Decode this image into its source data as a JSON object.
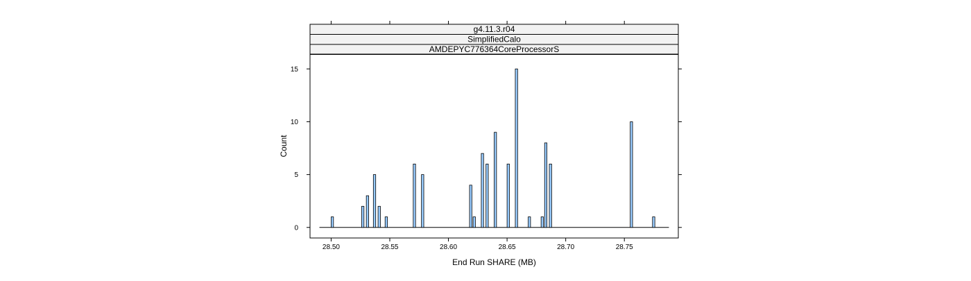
{
  "chart_data": {
    "type": "bar",
    "strips": [
      "g4.11.3.r04",
      "SimplifiedCalo",
      "AMDEPYC776364CoreProcessorS"
    ],
    "xlabel": "End Run SHARE (MB)",
    "ylabel": "Count",
    "xlim": [
      28.482,
      28.796
    ],
    "ylim": [
      -1,
      16.4
    ],
    "xticks": [
      28.5,
      28.55,
      28.6,
      28.65,
      28.7,
      28.75
    ],
    "xtick_labels": [
      "28.50",
      "28.55",
      "28.60",
      "28.65",
      "28.70",
      "28.75"
    ],
    "yticks": [
      0,
      5,
      10,
      15
    ],
    "ytick_labels": [
      "0",
      "5",
      "10",
      "15"
    ],
    "baseline_range": [
      28.49,
      28.788
    ],
    "bar_width": 0.002,
    "bars": [
      {
        "x": 28.501,
        "count": 1
      },
      {
        "x": 28.527,
        "count": 2
      },
      {
        "x": 28.531,
        "count": 3
      },
      {
        "x": 28.537,
        "count": 5
      },
      {
        "x": 28.541,
        "count": 2
      },
      {
        "x": 28.547,
        "count": 1
      },
      {
        "x": 28.571,
        "count": 6
      },
      {
        "x": 28.578,
        "count": 5
      },
      {
        "x": 28.619,
        "count": 4
      },
      {
        "x": 28.622,
        "count": 1
      },
      {
        "x": 28.629,
        "count": 7
      },
      {
        "x": 28.633,
        "count": 6
      },
      {
        "x": 28.64,
        "count": 9
      },
      {
        "x": 28.651,
        "count": 6
      },
      {
        "x": 28.658,
        "count": 15
      },
      {
        "x": 28.669,
        "count": 1
      },
      {
        "x": 28.68,
        "count": 1
      },
      {
        "x": 28.683,
        "count": 8
      },
      {
        "x": 28.687,
        "count": 6
      },
      {
        "x": 28.756,
        "count": 10
      },
      {
        "x": 28.775,
        "count": 1
      }
    ],
    "colors": {
      "bar_fill": "#99ccff",
      "bar_stroke": "#000000",
      "strip_fill": "#f2f2f2",
      "panel_stroke": "#000000"
    },
    "grid": false,
    "legend": "none"
  }
}
